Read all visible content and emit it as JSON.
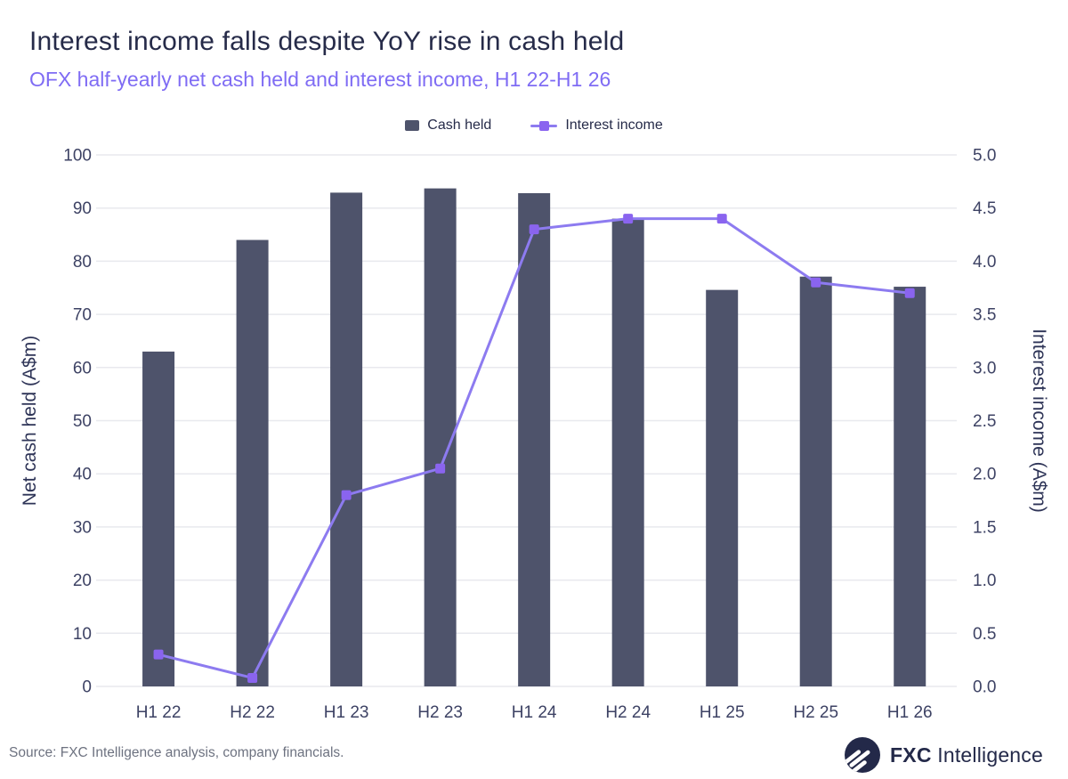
{
  "header": {
    "title": "Interest income falls despite YoY rise in cash held",
    "subtitle": "OFX half-yearly net cash held and interest income, H1 22-H1 26"
  },
  "chart_data": {
    "type": "combo-bar-line",
    "categories": [
      "H1 22",
      "H2 22",
      "H1 23",
      "H2 23",
      "H1 24",
      "H2 24",
      "H1 25",
      "H2 25",
      "H1 26"
    ],
    "series": [
      {
        "name": "Cash held",
        "type": "bar",
        "axis": "left",
        "values": [
          63,
          84,
          92.9,
          93.7,
          92.8,
          88,
          74.6,
          77.1,
          75.2
        ]
      },
      {
        "name": "Interest income",
        "type": "line",
        "axis": "right",
        "values": [
          0.3,
          0.08,
          1.8,
          2.05,
          4.3,
          4.4,
          4.4,
          3.8,
          3.7
        ]
      }
    ],
    "left_axis": {
      "label": "Net cash held (A$m)",
      "min": 0,
      "max": 100,
      "step": 10
    },
    "right_axis": {
      "label": "Interest income (A$m)",
      "min": 0,
      "max": 5,
      "step": 0.5
    },
    "grid": "horizontal",
    "legend_position": "top"
  },
  "footer": {
    "source": "Source: FXC Intelligence analysis, company financials.",
    "brand_bold": "FXC",
    "brand_rest": "Intelligence"
  },
  "theme": {
    "bar_color": "#4e536b",
    "line_color": "#8d7bf0",
    "marker_color": "#8a64ef",
    "title_color": "#262b49",
    "subtitle_color": "#7f6cf4",
    "grid_color": "#e8e9ee",
    "source_color": "#6d7280",
    "brand_navy": "#232949"
  }
}
